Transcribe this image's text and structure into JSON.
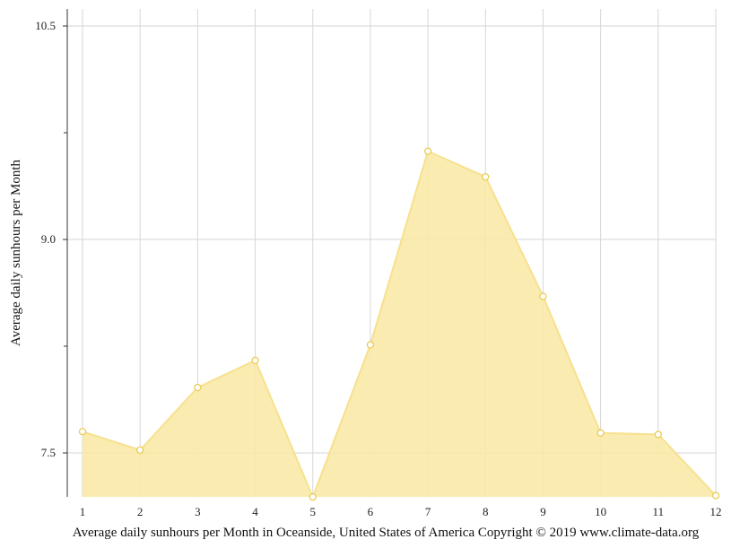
{
  "chart_data": {
    "type": "area",
    "title": "",
    "caption": "Average daily sunhours per Month in Oceanside, United States of America Copyright © 2019 www.climate-data.org",
    "xlabel": "",
    "ylabel": "Average daily sunhours per Month",
    "categories": [
      "1",
      "2",
      "3",
      "4",
      "5",
      "6",
      "7",
      "8",
      "9",
      "10",
      "11",
      "12"
    ],
    "series": [
      {
        "values": [
          7.65,
          7.52,
          7.96,
          8.15,
          7.19,
          8.26,
          9.62,
          9.44,
          8.6,
          7.64,
          7.63,
          7.2
        ]
      }
    ],
    "ylim": [
      7.2,
      10.5
    ],
    "y_ticks": [
      "10.5",
      "9.0",
      "7.5"
    ],
    "y_minor_ticks": [
      9.75,
      8.25
    ],
    "grid": true,
    "fill_color": "#f9eaa8",
    "line_color": "#f7e08f",
    "marker_edge_color": "#e8c94a"
  }
}
